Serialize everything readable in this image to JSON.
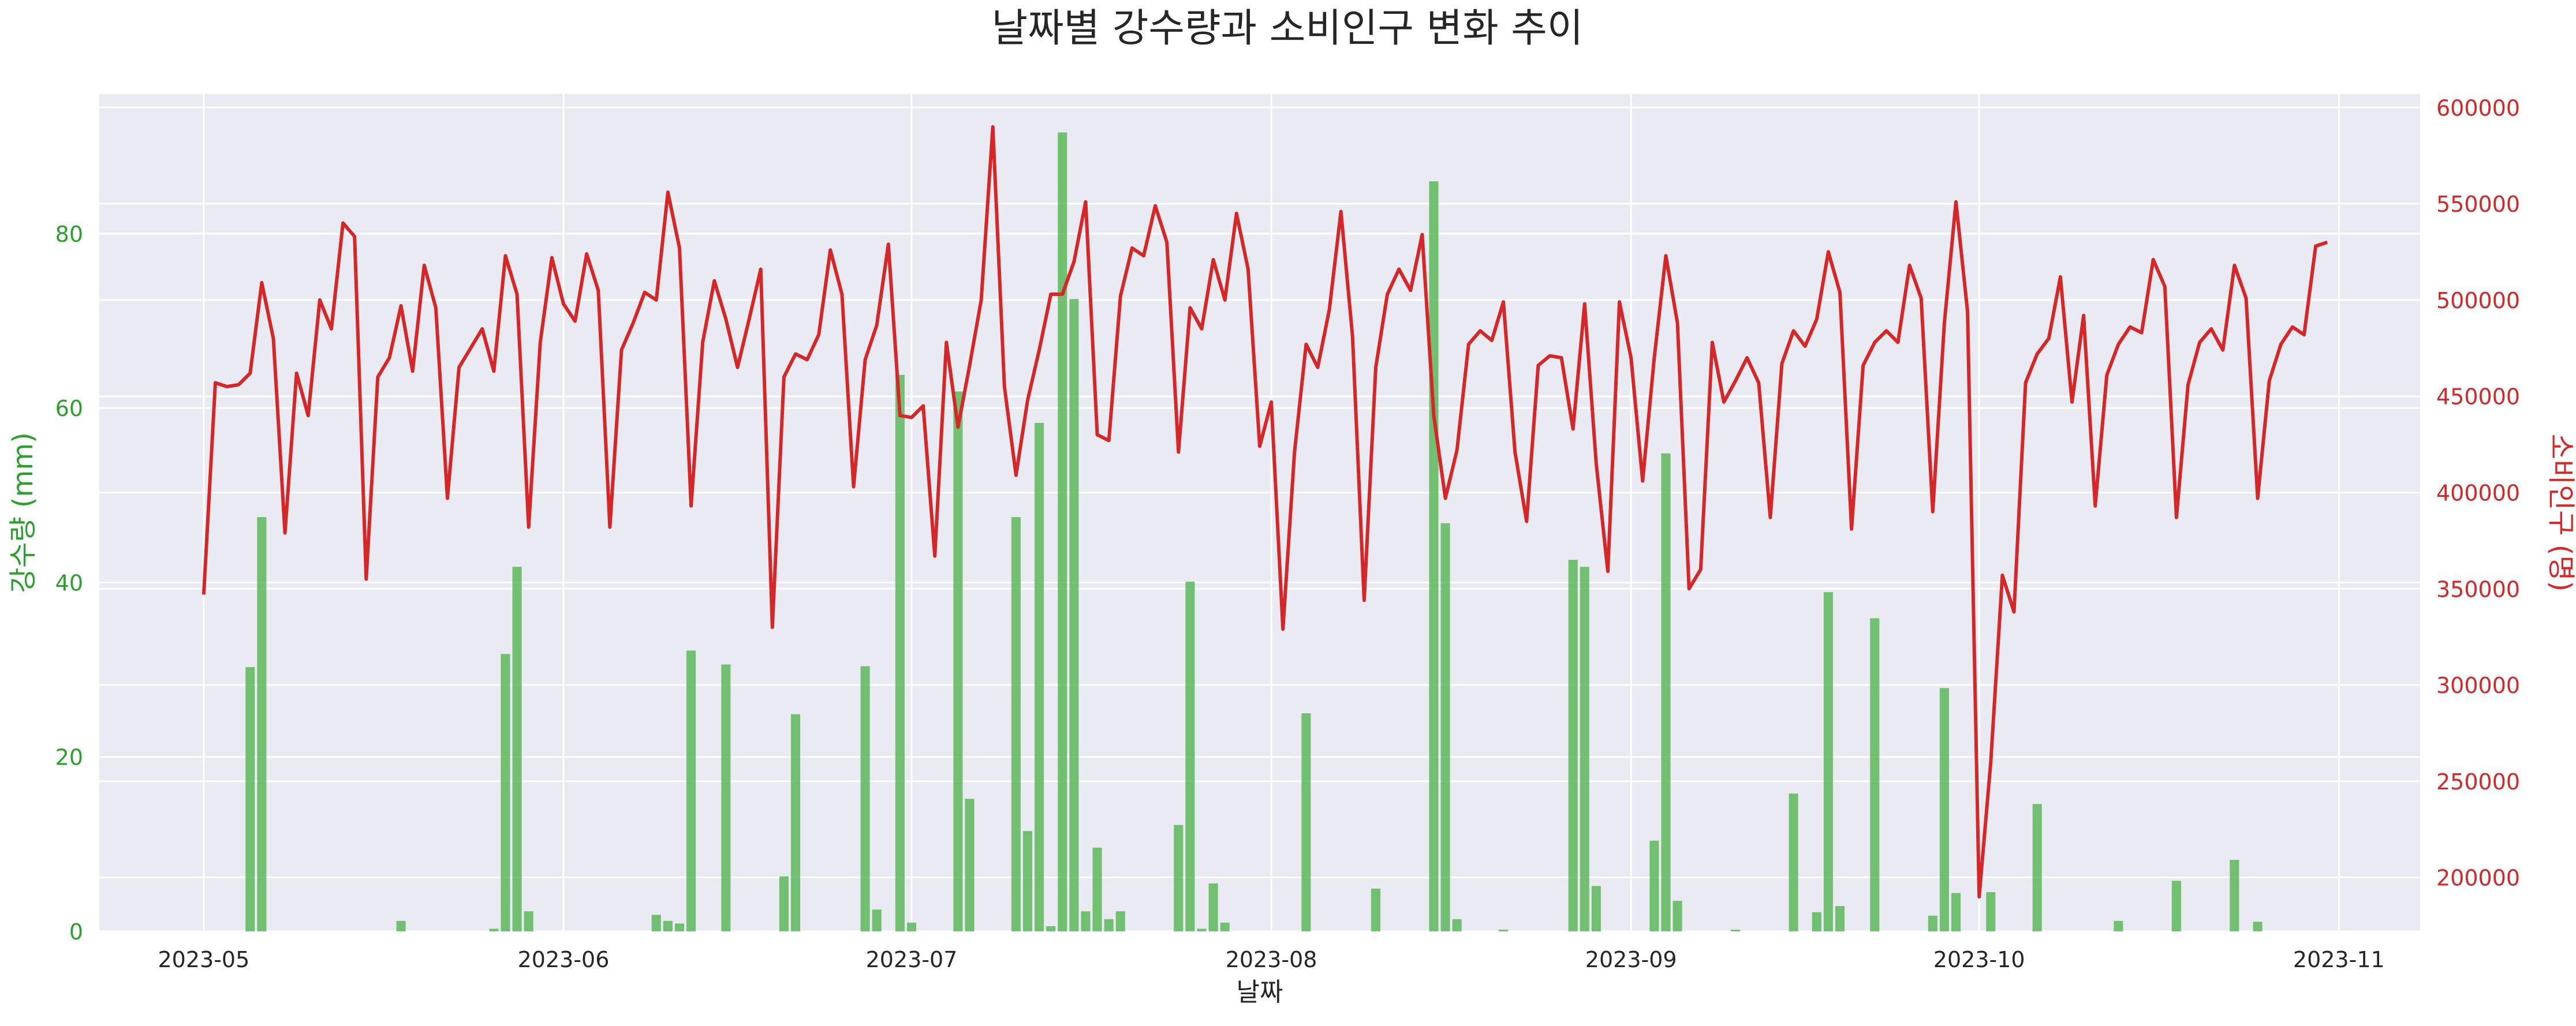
{
  "chart_data": {
    "type": "bar+line",
    "title": "날짜별 강수량과 소비인구 변화 추이",
    "xlabel": "날짜",
    "ylabel_left": "강수량 (mm)",
    "ylabel_right": "소비인구 (명)",
    "x_start": "2023-05-01",
    "x_end": "2023-10-31",
    "xlim": [
      "2023-04-22",
      "2023-11-08"
    ],
    "ylim_left": [
      0,
      96
    ],
    "ylim_right": [
      172000,
      607000
    ],
    "x_ticks": [
      "2023-05",
      "2023-06",
      "2023-07",
      "2023-08",
      "2023-09",
      "2023-10",
      "2023-11"
    ],
    "y_left_ticks": [
      0,
      20,
      40,
      60,
      80
    ],
    "y_right_ticks": [
      200000,
      250000,
      300000,
      350000,
      400000,
      450000,
      500000,
      550000,
      600000
    ],
    "grid": true,
    "colors": {
      "rain": "#5cb85c",
      "people": "#d62728",
      "left_axis": "#2ca02c",
      "right_axis": "#d62728",
      "background": "#eaeaf2",
      "grid": "#ffffff",
      "text": "#262626"
    },
    "series": [
      {
        "name": "강수량",
        "type": "bar",
        "axis": "left",
        "points": [
          [
            "2023-05-05",
            30.3
          ],
          [
            "2023-05-06",
            47.5
          ],
          [
            "2023-05-18",
            1.2
          ],
          [
            "2023-05-26",
            0.3
          ],
          [
            "2023-05-27",
            31.8
          ],
          [
            "2023-05-28",
            41.8
          ],
          [
            "2023-05-29",
            2.3
          ],
          [
            "2023-06-09",
            1.9
          ],
          [
            "2023-06-10",
            1.2
          ],
          [
            "2023-06-11",
            0.9
          ],
          [
            "2023-06-12",
            32.2
          ],
          [
            "2023-06-15",
            30.6
          ],
          [
            "2023-06-20",
            6.3
          ],
          [
            "2023-06-21",
            24.9
          ],
          [
            "2023-06-27",
            30.4
          ],
          [
            "2023-06-28",
            2.5
          ],
          [
            "2023-06-30",
            63.8
          ],
          [
            "2023-07-01",
            1.0
          ],
          [
            "2023-07-05",
            61.9
          ],
          [
            "2023-07-06",
            15.2
          ],
          [
            "2023-07-10",
            47.5
          ],
          [
            "2023-07-11",
            11.5
          ],
          [
            "2023-07-12",
            58.3
          ],
          [
            "2023-07-13",
            0.6
          ],
          [
            "2023-07-14",
            91.6
          ],
          [
            "2023-07-15",
            72.5
          ],
          [
            "2023-07-16",
            2.3
          ],
          [
            "2023-07-17",
            9.6
          ],
          [
            "2023-07-18",
            1.4
          ],
          [
            "2023-07-19",
            2.3
          ],
          [
            "2023-07-24",
            12.2
          ],
          [
            "2023-07-25",
            40.1
          ],
          [
            "2023-07-26",
            0.3
          ],
          [
            "2023-07-27",
            5.5
          ],
          [
            "2023-07-28",
            1.0
          ],
          [
            "2023-08-04",
            25.0
          ],
          [
            "2023-08-10",
            4.9
          ],
          [
            "2023-08-15",
            86.0
          ],
          [
            "2023-08-16",
            46.8
          ],
          [
            "2023-08-17",
            1.4
          ],
          [
            "2023-08-21",
            0.2
          ],
          [
            "2023-08-27",
            42.6
          ],
          [
            "2023-08-28",
            41.8
          ],
          [
            "2023-08-29",
            5.2
          ],
          [
            "2023-09-03",
            10.4
          ],
          [
            "2023-09-04",
            54.8
          ],
          [
            "2023-09-05",
            3.5
          ],
          [
            "2023-09-10",
            0.2
          ],
          [
            "2023-09-15",
            15.8
          ],
          [
            "2023-09-17",
            2.2
          ],
          [
            "2023-09-18",
            38.9
          ],
          [
            "2023-09-19",
            2.9
          ],
          [
            "2023-09-22",
            35.9
          ],
          [
            "2023-09-27",
            1.8
          ],
          [
            "2023-09-28",
            27.9
          ],
          [
            "2023-09-29",
            4.4
          ],
          [
            "2023-10-02",
            4.5
          ],
          [
            "2023-10-06",
            14.6
          ],
          [
            "2023-10-13",
            1.2
          ],
          [
            "2023-10-18",
            5.8
          ],
          [
            "2023-10-23",
            8.2
          ],
          [
            "2023-10-25",
            1.1
          ]
        ]
      },
      {
        "name": "소비인구",
        "type": "line",
        "axis": "right",
        "values": [
          347000,
          457000,
          455000,
          456000,
          462000,
          509000,
          480000,
          379000,
          462000,
          440000,
          500000,
          485000,
          540000,
          533000,
          355000,
          460000,
          470000,
          497000,
          463000,
          518000,
          496000,
          397000,
          465000,
          475000,
          485000,
          463000,
          523000,
          503000,
          382000,
          478000,
          522000,
          498000,
          489000,
          524000,
          505000,
          382000,
          474000,
          488000,
          504000,
          500000,
          556000,
          527000,
          393000,
          478000,
          510000,
          490000,
          465000,
          490000,
          516000,
          330000,
          460000,
          472000,
          469000,
          482000,
          526000,
          503000,
          403000,
          469000,
          487000,
          529000,
          440000,
          439000,
          445000,
          367000,
          478000,
          434000,
          466000,
          500000,
          590000,
          455000,
          409000,
          448000,
          474000,
          503000,
          503000,
          520000,
          551000,
          430000,
          427000,
          502000,
          527000,
          523000,
          549000,
          530000,
          421000,
          496000,
          485000,
          521000,
          500000,
          545000,
          516000,
          424000,
          447000,
          329000,
          421000,
          477000,
          465000,
          495000,
          546000,
          481000,
          344000,
          465000,
          503000,
          516000,
          505000,
          534000,
          440000,
          397000,
          422000,
          477000,
          484000,
          479000,
          499000,
          421000,
          385000,
          466000,
          471000,
          470000,
          433000,
          498000,
          415000,
          359000,
          499000,
          470000,
          406000,
          470000,
          523000,
          488000,
          350000,
          360000,
          478000,
          447000,
          458000,
          470000,
          457000,
          387000,
          467000,
          484000,
          476000,
          490000,
          525000,
          504000,
          381000,
          466000,
          478000,
          484000,
          478000,
          518000,
          501000,
          390000,
          488000,
          551000,
          494000,
          190000,
          260000,
          357000,
          338000,
          457000,
          472000,
          480000,
          512000,
          447000,
          492000,
          393000,
          461000,
          477000,
          486000,
          483000,
          521000,
          507000,
          387000,
          456000,
          478000,
          485000,
          474000,
          518000,
          501000,
          397000,
          458000,
          477000,
          486000,
          482000,
          528000,
          530000
        ]
      }
    ]
  }
}
